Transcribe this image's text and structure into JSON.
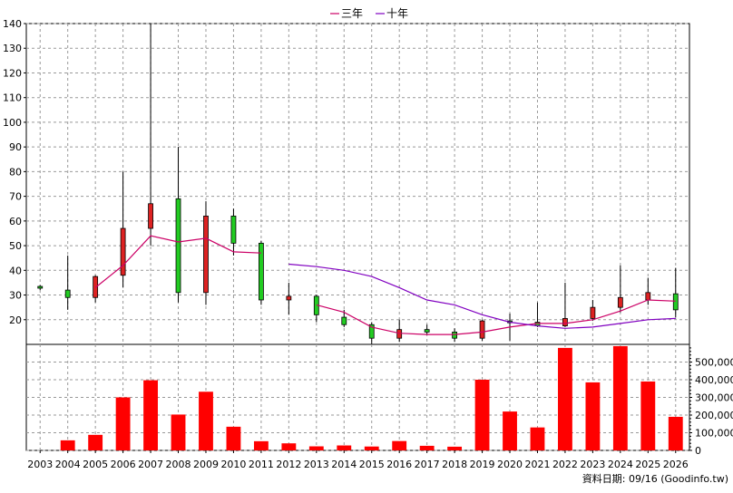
{
  "legend": {
    "items": [
      {
        "label": "三年",
        "color": "#cc0066"
      },
      {
        "label": "十年",
        "color": "#8000c0"
      }
    ]
  },
  "footer_note": "資料日期: 09/16 (Goodinfo.tw)",
  "chart_data": [
    {
      "type": "candlestick",
      "ylim": [
        10,
        140
      ],
      "yticks": [
        20,
        30,
        40,
        50,
        60,
        70,
        80,
        90,
        100,
        110,
        120,
        130,
        140
      ],
      "categories": [
        "2003",
        "2004",
        "2005",
        "2006",
        "2007",
        "2008",
        "2009",
        "2010",
        "2011",
        "2012",
        "2013",
        "2014",
        "2015",
        "2016",
        "2017",
        "2018",
        "2019",
        "2020",
        "2021",
        "2022",
        "2023",
        "2024",
        "2025",
        "2026"
      ],
      "candles": [
        {
          "year": "2003",
          "open": 33.0,
          "high": 34.0,
          "low": 32.0,
          "close": 33.5,
          "color": "green"
        },
        {
          "year": "2004",
          "open": 32.0,
          "high": 46.0,
          "low": 24.0,
          "close": 29.0,
          "color": "green"
        },
        {
          "year": "2005",
          "open": 29.0,
          "high": 38.0,
          "low": 27.0,
          "close": 37.5,
          "color": "red"
        },
        {
          "year": "2006",
          "open": 38.0,
          "high": 80.0,
          "low": 33.0,
          "close": 57.0,
          "color": "red"
        },
        {
          "year": "2007",
          "open": 57.0,
          "high": 140.0,
          "low": 50.0,
          "close": 67.0,
          "color": "red"
        },
        {
          "year": "2008",
          "open": 69.0,
          "high": 90.0,
          "low": 27.0,
          "close": 31.0,
          "color": "green"
        },
        {
          "year": "2009",
          "open": 31.0,
          "high": 68.0,
          "low": 26.0,
          "close": 62.0,
          "color": "red"
        },
        {
          "year": "2010",
          "open": 62.0,
          "high": 65.0,
          "low": 46.0,
          "close": 51.0,
          "color": "green"
        },
        {
          "year": "2011",
          "open": 51.0,
          "high": 52.0,
          "low": 26.0,
          "close": 28.0,
          "color": "green"
        },
        {
          "year": "2012",
          "open": 28.0,
          "high": 35.0,
          "low": 22.0,
          "close": 29.5,
          "color": "red"
        },
        {
          "year": "2013",
          "open": 29.5,
          "high": 30.0,
          "low": 19.0,
          "close": 22.0,
          "color": "green"
        },
        {
          "year": "2014",
          "open": 21.0,
          "high": 24.0,
          "low": 17.0,
          "close": 18.0,
          "color": "green"
        },
        {
          "year": "2015",
          "open": 18.0,
          "high": 19.0,
          "low": 10.0,
          "close": 12.5,
          "color": "green"
        },
        {
          "year": "2016",
          "open": 12.5,
          "high": 20.0,
          "low": 11.0,
          "close": 16.0,
          "color": "red"
        },
        {
          "year": "2017",
          "open": 16.0,
          "high": 18.0,
          "low": 14.0,
          "close": 15.0,
          "color": "green"
        },
        {
          "year": "2018",
          "open": 15.0,
          "high": 16.5,
          "low": 11.0,
          "close": 12.5,
          "color": "green"
        },
        {
          "year": "2019",
          "open": 12.5,
          "high": 20.0,
          "low": 11.5,
          "close": 19.5,
          "color": "red"
        },
        {
          "year": "2020",
          "open": 19.5,
          "high": 22.5,
          "low": 11.5,
          "close": 19.0,
          "color": "green"
        },
        {
          "year": "2021",
          "open": 19.0,
          "high": 27.0,
          "low": 17.0,
          "close": 17.5,
          "color": "green"
        },
        {
          "year": "2022",
          "open": 17.5,
          "high": 35.0,
          "low": 17.0,
          "close": 20.5,
          "color": "red"
        },
        {
          "year": "2023",
          "open": 20.5,
          "high": 28.0,
          "low": 19.5,
          "close": 25.0,
          "color": "red"
        },
        {
          "year": "2024",
          "open": 25.0,
          "high": 42.0,
          "low": 23.0,
          "close": 29.0,
          "color": "red"
        },
        {
          "year": "2025",
          "open": 28.0,
          "high": 37.0,
          "low": 26.0,
          "close": 31.0,
          "color": "red"
        },
        {
          "year": "2026",
          "open": 30.5,
          "high": 41.0,
          "low": 21.0,
          "close": 24.0,
          "color": "green"
        }
      ],
      "series": [
        {
          "name": "三年",
          "color": "#cc0066",
          "values": [
            null,
            null,
            33,
            42,
            54,
            51.5,
            53,
            47.5,
            47,
            null,
            26,
            23,
            17,
            14.5,
            14,
            14,
            15,
            17,
            18.5,
            18.5,
            20,
            23.5,
            28,
            27.5
          ]
        },
        {
          "name": "十年",
          "color": "#8000c0",
          "values": [
            null,
            null,
            null,
            null,
            null,
            null,
            null,
            null,
            null,
            42.5,
            41.5,
            40,
            37.5,
            33,
            28,
            26,
            22,
            19,
            17.5,
            16.5,
            17,
            18.5,
            20,
            20.5
          ]
        }
      ],
      "grid": true
    },
    {
      "type": "bar",
      "ylim": [
        0,
        600000
      ],
      "yticks": [
        0,
        100000,
        200000,
        300000,
        400000,
        500000
      ],
      "ytick_labels": [
        "0",
        "100,000",
        "200,000",
        "300,000",
        "400,000",
        "500,000"
      ],
      "categories": [
        "2003",
        "2004",
        "2005",
        "2006",
        "2007",
        "2008",
        "2009",
        "2010",
        "2011",
        "2012",
        "2013",
        "2014",
        "2015",
        "2016",
        "2017",
        "2018",
        "2019",
        "2020",
        "2021",
        "2022",
        "2023",
        "2024",
        "2025",
        "2026"
      ],
      "values": [
        0,
        57000,
        88000,
        300000,
        397000,
        203000,
        332000,
        134000,
        52000,
        40000,
        23000,
        28000,
        22000,
        53000,
        26000,
        21000,
        400000,
        220000,
        130000,
        580000,
        385000,
        590000,
        390000,
        190000
      ],
      "color": "#ff0000",
      "grid": true
    }
  ]
}
